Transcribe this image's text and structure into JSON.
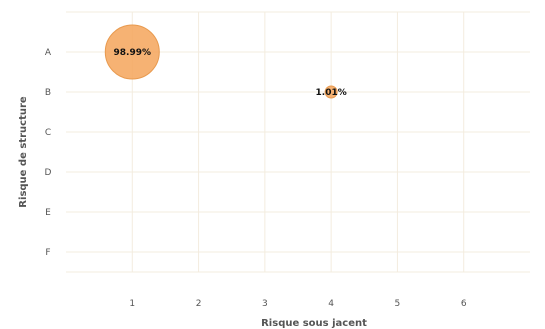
{
  "chart_data": {
    "type": "scatter",
    "title": "",
    "xlabel": "Risque sous jacent",
    "ylabel": "Risque de structure",
    "x_ticks": [
      "1",
      "2",
      "3",
      "4",
      "5",
      "6"
    ],
    "y_categories": [
      "A",
      "B",
      "C",
      "D",
      "E",
      "F"
    ],
    "xlim": [
      0,
      7
    ],
    "grid": true,
    "bubble_color": "#f5a55a",
    "bubble_stroke": "#e89a4f",
    "grid_color": "#f3ecdf",
    "points": [
      {
        "x": 1,
        "y": "A",
        "value": 98.99,
        "label": "98.99%"
      },
      {
        "x": 4,
        "y": "B",
        "value": 1.01,
        "label": "1.01%"
      }
    ]
  }
}
